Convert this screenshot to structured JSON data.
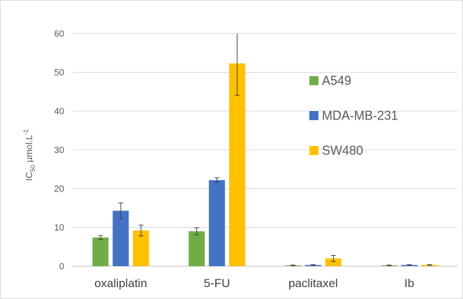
{
  "chart_data": {
    "type": "bar",
    "title": "",
    "xlabel": "",
    "ylabel": {
      "prefix": "IC",
      "subscript": "50",
      "middle": " µmol.L",
      "superscript": "-1"
    },
    "ylim": [
      0,
      60
    ],
    "yticks": [
      0,
      10,
      20,
      30,
      40,
      50,
      60
    ],
    "grid": true,
    "legend_position": "right",
    "categories": [
      "oxaliplatin",
      "5-FU",
      "paclitaxel",
      "Ib"
    ],
    "series": [
      {
        "name": "A549",
        "color": "#70ad47",
        "values": [
          7.4,
          9.0,
          0.2,
          0.2
        ],
        "errors": [
          0.5,
          0.9,
          0.1,
          0.1
        ]
      },
      {
        "name": "MDA-MB-231",
        "color": "#4472c4",
        "values": [
          14.3,
          22.2,
          0.3,
          0.3
        ],
        "errors": [
          2.0,
          0.6,
          0.1,
          0.1
        ]
      },
      {
        "name": "SW480",
        "color": "#ffc000",
        "values": [
          9.2,
          52.3,
          2.0,
          0.3
        ],
        "errors": [
          1.4,
          8.2,
          0.8,
          0.1
        ]
      }
    ]
  }
}
